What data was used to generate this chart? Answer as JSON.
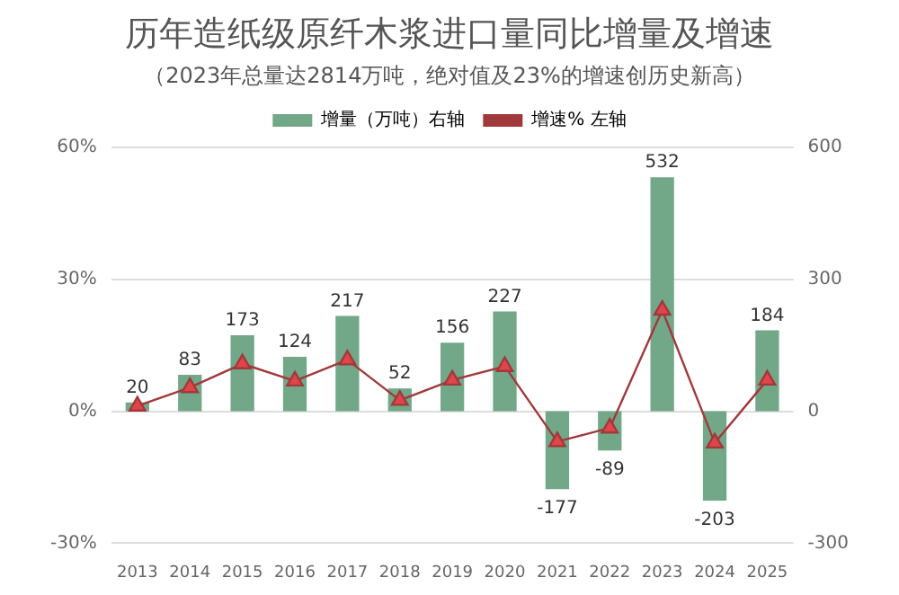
{
  "chart_data": {
    "type": "bar",
    "title": "历年造纸级原纤木浆进口量同比增量及增速",
    "subtitle": "（2023年总量达2814万吨，绝对值及23%的增速创历史新高）",
    "categories": [
      "2013",
      "2014",
      "2015",
      "2016",
      "2017",
      "2018",
      "2019",
      "2020",
      "2021",
      "2022",
      "2023",
      "2024",
      "2025"
    ],
    "series": [
      {
        "name": "增量（万吨）右轴",
        "axis": "y2",
        "color": "#72a888",
        "values": [
          20,
          83,
          173,
          124,
          217,
          52,
          156,
          227,
          -177,
          -89,
          532,
          -203,
          184
        ],
        "value_labels": [
          "20",
          "83",
          "173",
          "124",
          "217",
          "52",
          "156",
          "227",
          "-177",
          "-89",
          "532",
          "-203",
          "184"
        ]
      },
      {
        "name": "增速% 左轴",
        "type": "line",
        "axis": "y",
        "color": "#a0393b",
        "marker": "triangle",
        "values": [
          1.2,
          5.4,
          10.8,
          6.9,
          11.7,
          2.5,
          7.1,
          10.2,
          -6.9,
          -3.8,
          23,
          -7.2,
          7.1
        ]
      }
    ],
    "ylim": [
      -30,
      60
    ],
    "yticks": [
      {
        "value": -30,
        "label": "-30%"
      },
      {
        "value": 0,
        "label": "0%"
      },
      {
        "value": 30,
        "label": "30%"
      },
      {
        "value": 60,
        "label": "60%"
      }
    ],
    "y2lim": [
      -300,
      600
    ],
    "y2ticks": [
      -300,
      0,
      300,
      600
    ],
    "grid": "y",
    "legend": "top"
  }
}
